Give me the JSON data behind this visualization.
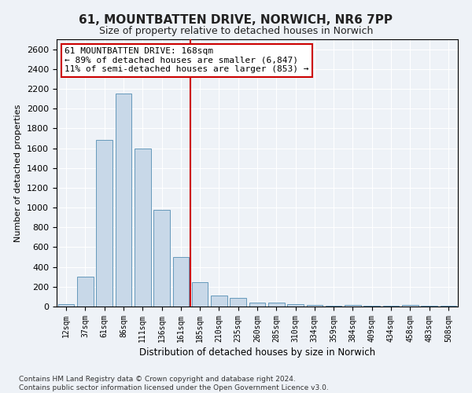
{
  "title": "61, MOUNTBATTEN DRIVE, NORWICH, NR6 7PP",
  "subtitle": "Size of property relative to detached houses in Norwich",
  "xlabel": "Distribution of detached houses by size in Norwich",
  "ylabel": "Number of detached properties",
  "bar_color": "#c8d8e8",
  "bar_edge_color": "#6699bb",
  "categories": [
    "12sqm",
    "37sqm",
    "61sqm",
    "86sqm",
    "111sqm",
    "136sqm",
    "161sqm",
    "185sqm",
    "210sqm",
    "235sqm",
    "260sqm",
    "285sqm",
    "310sqm",
    "334sqm",
    "359sqm",
    "384sqm",
    "409sqm",
    "434sqm",
    "458sqm",
    "483sqm",
    "508sqm"
  ],
  "values": [
    25,
    300,
    1680,
    2150,
    1600,
    980,
    500,
    245,
    115,
    90,
    40,
    40,
    25,
    15,
    5,
    15,
    5,
    5,
    15,
    5,
    5
  ],
  "ylim": [
    0,
    2700
  ],
  "yticks": [
    0,
    200,
    400,
    600,
    800,
    1000,
    1200,
    1400,
    1600,
    1800,
    2000,
    2200,
    2400,
    2600
  ],
  "vline_x_index": 7,
  "vline_color": "#cc0000",
  "annotation_text": "61 MOUNTBATTEN DRIVE: 168sqm\n← 89% of detached houses are smaller (6,847)\n11% of semi-detached houses are larger (853) →",
  "annotation_box_color": "#ffffff",
  "annotation_box_edgecolor": "#cc0000",
  "footer_line1": "Contains HM Land Registry data © Crown copyright and database right 2024.",
  "footer_line2": "Contains public sector information licensed under the Open Government Licence v3.0.",
  "background_color": "#eef2f7",
  "plot_background_color": "#eef2f7"
}
